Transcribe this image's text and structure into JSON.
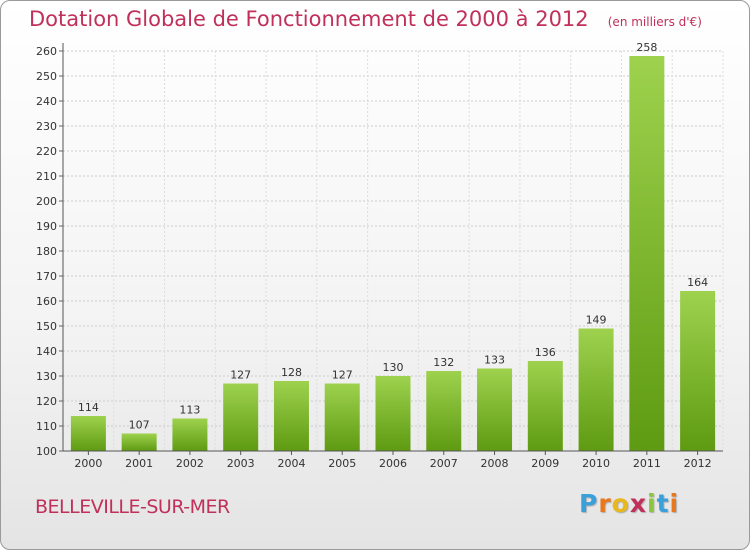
{
  "chart_data": {
    "type": "bar",
    "title": "Dotation Globale de Fonctionnement de 2000 à 2012",
    "unit": "(en milliers d'€)",
    "categories": [
      "2000",
      "2001",
      "2002",
      "2003",
      "2004",
      "2005",
      "2006",
      "2007",
      "2008",
      "2009",
      "2010",
      "2011",
      "2012"
    ],
    "values": [
      114,
      107,
      113,
      127,
      128,
      127,
      130,
      132,
      133,
      136,
      149,
      258,
      164
    ],
    "ylim": [
      100,
      260
    ],
    "yticks": [
      100,
      110,
      120,
      130,
      140,
      150,
      160,
      170,
      180,
      190,
      200,
      210,
      220,
      230,
      240,
      250,
      260
    ],
    "xlabel": "",
    "ylabel": "",
    "grid": true,
    "bar_color_light": "#9ed24e",
    "bar_color_dark": "#5e9a12"
  },
  "commune": "BELLEVILLE-SUR-MER",
  "logo": {
    "letters": [
      "P",
      "r",
      "o",
      "x",
      "i",
      "t",
      "i"
    ],
    "colors": [
      "#3aa0dc",
      "#e8781e",
      "#e8b81e",
      "#c0305a",
      "#8cc63f",
      "#3aa0dc",
      "#e8781e"
    ]
  }
}
